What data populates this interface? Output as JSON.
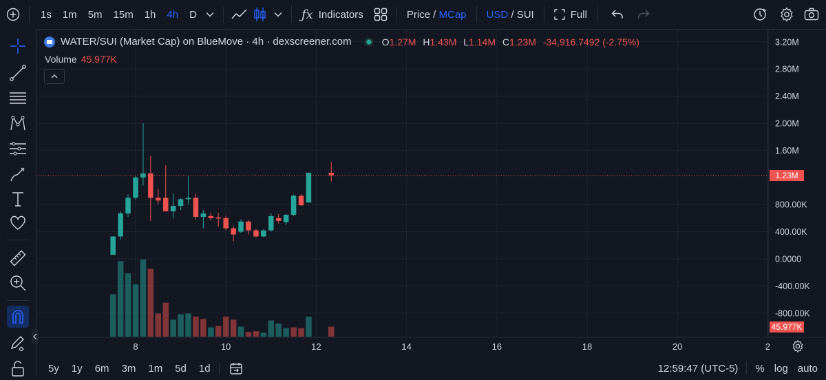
{
  "toolbar": {
    "timeframes": [
      "1s",
      "1m",
      "5m",
      "15m",
      "1h",
      "4h",
      "D"
    ],
    "active_timeframe": "4h",
    "indicators_label": "Indicators",
    "price_label": "Price",
    "slash": "/",
    "mcap_label": "MCap",
    "usd_label": "USD",
    "sui_label": "SUI",
    "full_label": "Full"
  },
  "legend": {
    "title": "WATER/SUI (Market Cap) on BlueMove · 4h · dexscreener.com",
    "o_label": "O",
    "o_value": "1.27M",
    "h_label": "H",
    "h_value": "1.43M",
    "l_label": "L",
    "l_value": "1.14M",
    "c_label": "C",
    "c_value": "1.23M",
    "change": "-34,916.7492 (-2.75%)",
    "volume_label": "Volume",
    "volume_value": "45.977K"
  },
  "bottom": {
    "ranges": [
      "5y",
      "1y",
      "6m",
      "3m",
      "1m",
      "5d",
      "1d"
    ],
    "time": "12:59:47 (UTC-5)",
    "percent": "%",
    "log": "log",
    "auto": "auto"
  },
  "colors": {
    "up": "#26a69a",
    "down": "#ef5350",
    "accent": "#2962ff",
    "bg": "#131722",
    "grid": "#1f2431"
  },
  "chart_data": {
    "type": "candlestick",
    "x_ticks": [
      "8",
      "10",
      "12",
      "14",
      "16",
      "18",
      "20",
      "2"
    ],
    "y_ticks": [
      "3.20M",
      "2.80M",
      "2.40M",
      "2.00M",
      "1.60M",
      "800.00K",
      "400.00K",
      "0.0000",
      "-400.00K",
      "-800.00K"
    ],
    "y_range": [
      -1150000,
      3450000
    ],
    "x_range_days": [
      7.0,
      21.5
    ],
    "last_price": 1230000,
    "last_price_label": "1.23M",
    "last_volume_label": "45.977K",
    "candles": [
      {
        "t": 7.5,
        "o": 60000,
        "h": 330000,
        "l": 60000,
        "c": 330000
      },
      {
        "t": 7.667,
        "o": 330000,
        "h": 700000,
        "l": 280000,
        "c": 670000
      },
      {
        "t": 7.833,
        "o": 670000,
        "h": 950000,
        "l": 620000,
        "c": 900000
      },
      {
        "t": 8.0,
        "o": 900000,
        "h": 1220000,
        "l": 870000,
        "c": 1200000
      },
      {
        "t": 8.167,
        "o": 1200000,
        "h": 2000000,
        "l": 1080000,
        "c": 1260000
      },
      {
        "t": 8.333,
        "o": 1260000,
        "h": 1520000,
        "l": 560000,
        "c": 900000
      },
      {
        "t": 8.5,
        "o": 900000,
        "h": 1040000,
        "l": 800000,
        "c": 860000
      },
      {
        "t": 8.667,
        "o": 900000,
        "h": 1380000,
        "l": 700000,
        "c": 700000
      },
      {
        "t": 8.833,
        "o": 700000,
        "h": 960000,
        "l": 600000,
        "c": 780000
      },
      {
        "t": 9.0,
        "o": 780000,
        "h": 900000,
        "l": 720000,
        "c": 880000
      },
      {
        "t": 9.167,
        "o": 880000,
        "h": 1220000,
        "l": 800000,
        "c": 900000
      },
      {
        "t": 9.333,
        "o": 900000,
        "h": 960000,
        "l": 580000,
        "c": 620000
      },
      {
        "t": 9.5,
        "o": 620000,
        "h": 720000,
        "l": 450000,
        "c": 670000
      },
      {
        "t": 9.667,
        "o": 630000,
        "h": 680000,
        "l": 560000,
        "c": 600000
      },
      {
        "t": 9.833,
        "o": 610000,
        "h": 680000,
        "l": 470000,
        "c": 600000
      },
      {
        "t": 10.0,
        "o": 600000,
        "h": 640000,
        "l": 420000,
        "c": 450000
      },
      {
        "t": 10.167,
        "o": 450000,
        "h": 480000,
        "l": 260000,
        "c": 360000
      },
      {
        "t": 10.333,
        "o": 400000,
        "h": 580000,
        "l": 380000,
        "c": 550000
      },
      {
        "t": 10.5,
        "o": 550000,
        "h": 570000,
        "l": 360000,
        "c": 420000
      },
      {
        "t": 10.667,
        "o": 420000,
        "h": 440000,
        "l": 320000,
        "c": 330000
      },
      {
        "t": 10.833,
        "o": 330000,
        "h": 440000,
        "l": 320000,
        "c": 420000
      },
      {
        "t": 11.0,
        "o": 420000,
        "h": 670000,
        "l": 400000,
        "c": 630000
      },
      {
        "t": 11.167,
        "o": 600000,
        "h": 660000,
        "l": 520000,
        "c": 560000
      },
      {
        "t": 11.333,
        "o": 540000,
        "h": 660000,
        "l": 500000,
        "c": 650000
      },
      {
        "t": 11.5,
        "o": 650000,
        "h": 950000,
        "l": 630000,
        "c": 930000
      },
      {
        "t": 11.667,
        "o": 930000,
        "h": 960000,
        "l": 780000,
        "c": 790000
      },
      {
        "t": 11.833,
        "o": 830000,
        "h": 1270000,
        "l": 830000,
        "c": 1270000
      },
      {
        "t": 12.333,
        "o": 1270000,
        "h": 1430000,
        "l": 1140000,
        "c": 1230000
      }
    ],
    "volume": [
      {
        "t": 7.5,
        "v": 0.55,
        "up": true
      },
      {
        "t": 7.667,
        "v": 0.98,
        "up": true
      },
      {
        "t": 7.833,
        "v": 0.82,
        "up": true
      },
      {
        "t": 8.0,
        "v": 0.68,
        "up": true
      },
      {
        "t": 8.167,
        "v": 1.0,
        "up": true
      },
      {
        "t": 8.333,
        "v": 0.88,
        "up": false
      },
      {
        "t": 8.5,
        "v": 0.3,
        "up": false
      },
      {
        "t": 8.667,
        "v": 0.44,
        "up": false
      },
      {
        "t": 8.833,
        "v": 0.22,
        "up": true
      },
      {
        "t": 9.0,
        "v": 0.29,
        "up": true
      },
      {
        "t": 9.167,
        "v": 0.3,
        "up": true
      },
      {
        "t": 9.333,
        "v": 0.26,
        "up": false
      },
      {
        "t": 9.5,
        "v": 0.23,
        "up": false
      },
      {
        "t": 9.667,
        "v": 0.12,
        "up": true
      },
      {
        "t": 9.833,
        "v": 0.14,
        "up": false
      },
      {
        "t": 10.0,
        "v": 0.26,
        "up": false
      },
      {
        "t": 10.167,
        "v": 0.22,
        "up": false
      },
      {
        "t": 10.333,
        "v": 0.13,
        "up": true
      },
      {
        "t": 10.5,
        "v": 0.06,
        "up": false
      },
      {
        "t": 10.667,
        "v": 0.07,
        "up": false
      },
      {
        "t": 10.833,
        "v": 0.05,
        "up": true
      },
      {
        "t": 11.0,
        "v": 0.21,
        "up": true
      },
      {
        "t": 11.167,
        "v": 0.17,
        "up": true
      },
      {
        "t": 11.333,
        "v": 0.11,
        "up": true
      },
      {
        "t": 11.5,
        "v": 0.12,
        "up": false
      },
      {
        "t": 11.667,
        "v": 0.11,
        "up": false
      },
      {
        "t": 11.833,
        "v": 0.26,
        "up": true
      },
      {
        "t": 12.333,
        "v": 0.13,
        "up": false
      }
    ]
  }
}
